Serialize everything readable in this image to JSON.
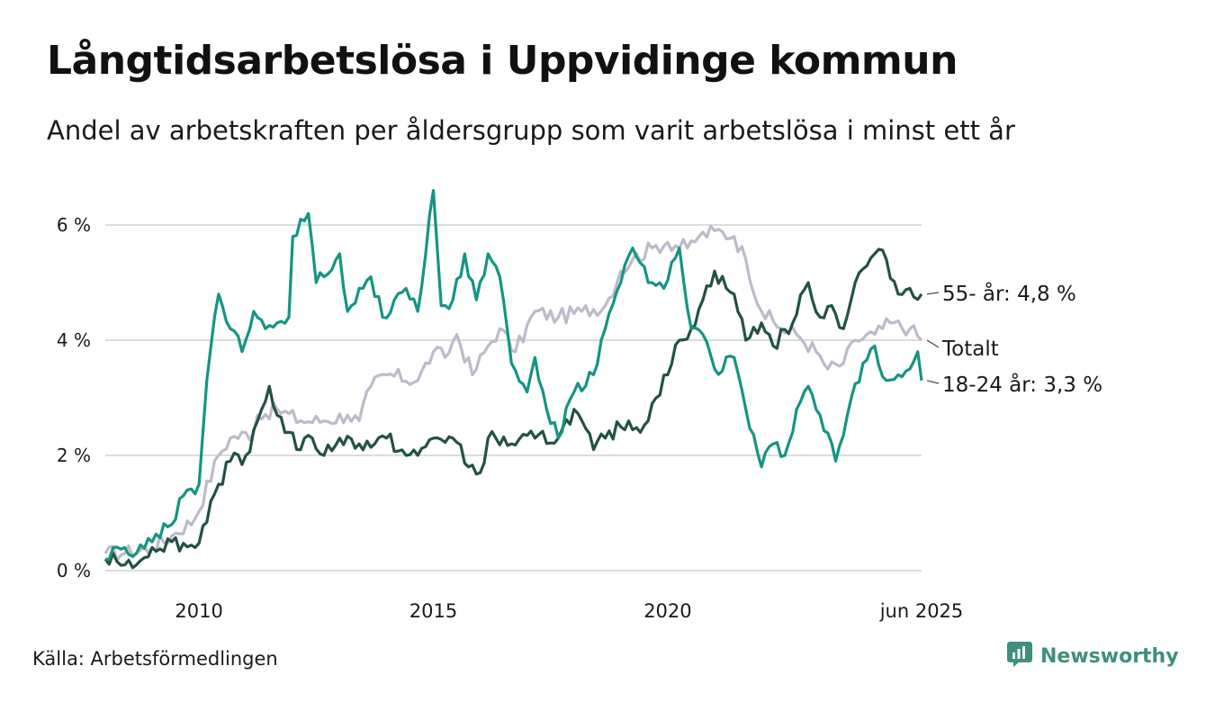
{
  "title": "Långtidsarbetslösa i Uppvidinge kommun",
  "subtitle": "Andel av arbetskraften per åldersgrupp som varit arbetslösa i minst ett år",
  "source": "Källa: Arbetsförmedlingen",
  "brand": {
    "name": "Newsworthy",
    "icon": "newsworthy-logo-icon",
    "color": "#3f8f7d"
  },
  "chart_data": {
    "type": "line",
    "x_start": "2008-01",
    "x_end": "2025-06",
    "x_step": "month",
    "xticks": [
      {
        "date": "2010-01",
        "label": "2010"
      },
      {
        "date": "2015-01",
        "label": "2015"
      },
      {
        "date": "2020-01",
        "label": "2020"
      },
      {
        "date": "2025-06",
        "label": "jun 2025"
      }
    ],
    "yticks": [
      {
        "value": 0,
        "label": "0 %"
      },
      {
        "value": 2,
        "label": "2 %"
      },
      {
        "value": 4,
        "label": "4 %"
      },
      {
        "value": 6,
        "label": "6 %"
      }
    ],
    "ylim": [
      0,
      6.7
    ],
    "grid": true,
    "series": [
      {
        "name": "Totalt",
        "end_label": "Totalt",
        "color": "#bdbac9",
        "anchors": [
          [
            "2008-01",
            0.3
          ],
          [
            "2008-06",
            0.3
          ],
          [
            "2009-01",
            0.4
          ],
          [
            "2009-06",
            0.6
          ],
          [
            "2009-12",
            0.9
          ],
          [
            "2010-06",
            2.0
          ],
          [
            "2010-09",
            2.3
          ],
          [
            "2011-03",
            2.4
          ],
          [
            "2011-04",
            2.7
          ],
          [
            "2011-09",
            2.8
          ],
          [
            "2012-03",
            2.6
          ],
          [
            "2012-09",
            2.6
          ],
          [
            "2013-03",
            2.7
          ],
          [
            "2013-06",
            2.6
          ],
          [
            "2013-09",
            3.2
          ],
          [
            "2014-01",
            3.4
          ],
          [
            "2014-09",
            3.3
          ],
          [
            "2015-01",
            3.8
          ],
          [
            "2015-04",
            3.7
          ],
          [
            "2015-07",
            4.1
          ],
          [
            "2015-11",
            3.4
          ],
          [
            "2016-03",
            3.9
          ],
          [
            "2016-06",
            4.2
          ],
          [
            "2016-10",
            3.8
          ],
          [
            "2017-03",
            4.5
          ],
          [
            "2017-09",
            4.4
          ],
          [
            "2018-03",
            4.5
          ],
          [
            "2018-09",
            4.6
          ],
          [
            "2019-01",
            5.2
          ],
          [
            "2019-04",
            5.4
          ],
          [
            "2019-09",
            5.6
          ],
          [
            "2020-01",
            5.7
          ],
          [
            "2020-06",
            5.6
          ],
          [
            "2020-09",
            5.8
          ],
          [
            "2021-01",
            5.9
          ],
          [
            "2021-06",
            5.8
          ],
          [
            "2021-09",
            5.4
          ],
          [
            "2022-01",
            4.5
          ],
          [
            "2022-06",
            4.2
          ],
          [
            "2022-10",
            4.1
          ],
          [
            "2023-03",
            3.8
          ],
          [
            "2023-06",
            3.5
          ],
          [
            "2023-10",
            3.6
          ],
          [
            "2024-01",
            4.0
          ],
          [
            "2024-06",
            4.1
          ],
          [
            "2024-10",
            4.3
          ],
          [
            "2025-03",
            4.2
          ],
          [
            "2025-06",
            4.0
          ]
        ]
      },
      {
        "name": "55- år",
        "end_label": "55- år: 4,8 %",
        "color": "#225146",
        "anchors": [
          [
            "2008-01",
            0.2
          ],
          [
            "2008-03",
            0.3
          ],
          [
            "2008-06",
            0.1
          ],
          [
            "2008-09",
            0.1
          ],
          [
            "2009-01",
            0.4
          ],
          [
            "2009-06",
            0.5
          ],
          [
            "2009-12",
            0.4
          ],
          [
            "2010-06",
            1.5
          ],
          [
            "2010-09",
            1.9
          ],
          [
            "2011-01",
            2.0
          ],
          [
            "2011-04",
            2.6
          ],
          [
            "2011-07",
            3.2
          ],
          [
            "2011-09",
            2.7
          ],
          [
            "2011-12",
            2.4
          ],
          [
            "2012-03",
            2.1
          ],
          [
            "2012-06",
            2.3
          ],
          [
            "2012-09",
            2.0
          ],
          [
            "2013-01",
            2.3
          ],
          [
            "2013-06",
            2.2
          ],
          [
            "2013-10",
            2.2
          ],
          [
            "2014-01",
            2.3
          ],
          [
            "2014-06",
            2.0
          ],
          [
            "2014-09",
            2.0
          ],
          [
            "2015-01",
            2.3
          ],
          [
            "2015-06",
            2.3
          ],
          [
            "2015-10",
            1.8
          ],
          [
            "2016-01",
            1.7
          ],
          [
            "2016-03",
            2.3
          ],
          [
            "2016-09",
            2.2
          ],
          [
            "2017-03",
            2.3
          ],
          [
            "2017-09",
            2.3
          ],
          [
            "2018-01",
            2.8
          ],
          [
            "2018-06",
            2.1
          ],
          [
            "2018-09",
            2.3
          ],
          [
            "2019-03",
            2.6
          ],
          [
            "2019-06",
            2.4
          ],
          [
            "2019-09",
            2.9
          ],
          [
            "2020-01",
            3.4
          ],
          [
            "2020-04",
            4.0
          ],
          [
            "2020-07",
            4.2
          ],
          [
            "2020-10",
            4.7
          ],
          [
            "2021-01",
            5.2
          ],
          [
            "2021-04",
            4.9
          ],
          [
            "2021-06",
            4.8
          ],
          [
            "2021-09",
            4.0
          ],
          [
            "2022-01",
            4.3
          ],
          [
            "2022-04",
            3.9
          ],
          [
            "2022-09",
            4.3
          ],
          [
            "2023-01",
            5.0
          ],
          [
            "2023-04",
            4.4
          ],
          [
            "2023-07",
            4.6
          ],
          [
            "2023-10",
            4.2
          ],
          [
            "2024-01",
            5.0
          ],
          [
            "2024-06",
            5.5
          ],
          [
            "2024-09",
            5.4
          ],
          [
            "2024-12",
            4.8
          ],
          [
            "2025-03",
            4.9
          ],
          [
            "2025-06",
            4.8
          ]
        ]
      },
      {
        "name": "18-24 år",
        "end_label": "18-24 år: 3,3 %",
        "color": "#169483",
        "anchors": [
          [
            "2008-01",
            0.2
          ],
          [
            "2008-03",
            0.4
          ],
          [
            "2008-06",
            0.4
          ],
          [
            "2008-09",
            0.3
          ],
          [
            "2009-01",
            0.5
          ],
          [
            "2009-06",
            0.8
          ],
          [
            "2009-09",
            1.3
          ],
          [
            "2010-01",
            1.5
          ],
          [
            "2010-03",
            3.3
          ],
          [
            "2010-06",
            4.8
          ],
          [
            "2010-09",
            4.2
          ],
          [
            "2010-12",
            3.8
          ],
          [
            "2011-03",
            4.5
          ],
          [
            "2011-06",
            4.2
          ],
          [
            "2011-09",
            4.3
          ],
          [
            "2011-12",
            4.4
          ],
          [
            "2012-01",
            5.8
          ],
          [
            "2012-03",
            6.1
          ],
          [
            "2012-05",
            6.2
          ],
          [
            "2012-07",
            5.0
          ],
          [
            "2012-09",
            5.1
          ],
          [
            "2013-01",
            5.5
          ],
          [
            "2013-03",
            4.5
          ],
          [
            "2013-06",
            4.9
          ],
          [
            "2013-09",
            5.1
          ],
          [
            "2013-12",
            4.4
          ],
          [
            "2014-03",
            4.7
          ],
          [
            "2014-06",
            4.9
          ],
          [
            "2014-09",
            4.5
          ],
          [
            "2015-01",
            6.6
          ],
          [
            "2015-03",
            4.6
          ],
          [
            "2015-06",
            4.7
          ],
          [
            "2015-09",
            5.5
          ],
          [
            "2015-12",
            4.7
          ],
          [
            "2016-03",
            5.5
          ],
          [
            "2016-06",
            5.1
          ],
          [
            "2016-09",
            3.6
          ],
          [
            "2017-01",
            3.1
          ],
          [
            "2017-03",
            3.7
          ],
          [
            "2017-06",
            2.8
          ],
          [
            "2017-09",
            2.3
          ],
          [
            "2018-01",
            3.1
          ],
          [
            "2018-06",
            3.4
          ],
          [
            "2018-09",
            4.2
          ],
          [
            "2019-01",
            5.0
          ],
          [
            "2019-04",
            5.6
          ],
          [
            "2019-08",
            5.0
          ],
          [
            "2019-12",
            4.9
          ],
          [
            "2020-04",
            5.6
          ],
          [
            "2020-07",
            4.2
          ],
          [
            "2020-10",
            4.1
          ],
          [
            "2021-01",
            3.5
          ],
          [
            "2021-06",
            3.7
          ],
          [
            "2021-09",
            2.8
          ],
          [
            "2022-01",
            1.8
          ],
          [
            "2022-04",
            2.2
          ],
          [
            "2022-07",
            2.0
          ],
          [
            "2022-10",
            2.8
          ],
          [
            "2023-01",
            3.2
          ],
          [
            "2023-04",
            2.7
          ],
          [
            "2023-08",
            1.9
          ],
          [
            "2023-11",
            2.7
          ],
          [
            "2024-03",
            3.6
          ],
          [
            "2024-06",
            3.9
          ],
          [
            "2024-09",
            3.3
          ],
          [
            "2024-12",
            3.4
          ],
          [
            "2025-03",
            3.5
          ],
          [
            "2025-05",
            3.8
          ],
          [
            "2025-06",
            3.3
          ]
        ]
      }
    ]
  }
}
